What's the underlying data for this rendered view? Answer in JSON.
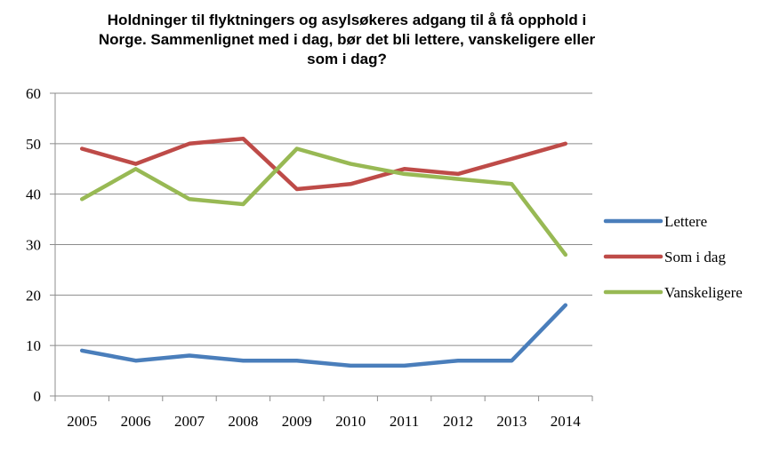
{
  "chart_data": {
    "type": "line",
    "title_lines": [
      "Holdninger til flyktningers og asylsøkeres adgang til å få opphold i",
      "Norge. Sammenlignet med i dag, bør det bli lettere, vanskeligere eller",
      "som i dag?"
    ],
    "xlabel": "",
    "ylabel": "",
    "x": [
      "2005",
      "2006",
      "2007",
      "2008",
      "2009",
      "2010",
      "2011",
      "2012",
      "2013",
      "2014"
    ],
    "ylim": [
      0,
      60
    ],
    "yticks": [
      "0",
      "10",
      "20",
      "30",
      "40",
      "50",
      "60"
    ],
    "grid": true,
    "legend_position": "right",
    "series": [
      {
        "name": "Lettere",
        "color": "#4a7ebb",
        "values": [
          9,
          7,
          8,
          7,
          7,
          6,
          6,
          7,
          7,
          18
        ]
      },
      {
        "name": "Som i dag",
        "color": "#be4b48",
        "values": [
          49,
          46,
          50,
          51,
          41,
          42,
          45,
          44,
          47,
          50
        ]
      },
      {
        "name": "Vanskeligere",
        "color": "#98b954",
        "values": [
          39,
          45,
          39,
          38,
          49,
          46,
          44,
          43,
          42,
          28
        ]
      }
    ]
  }
}
